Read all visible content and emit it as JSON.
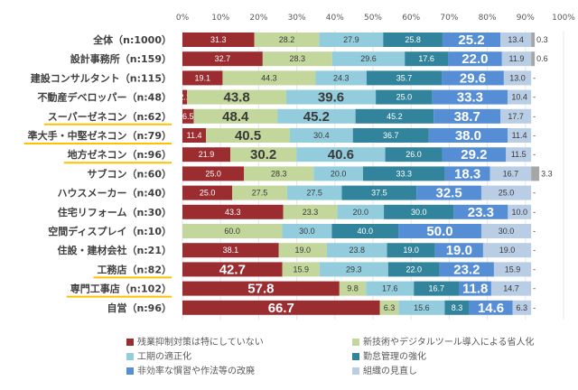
{
  "chart_data": {
    "type": "bar",
    "orientation": "horizontal",
    "stacked": true,
    "normalized_per_row": true,
    "title": "",
    "xlabel": "",
    "ylabel": "",
    "xlim": [
      0,
      100
    ],
    "x_ticks": [
      "0%",
      "10%",
      "20%",
      "30%",
      "40%",
      "50%",
      "60%",
      "70%",
      "80%",
      "90%",
      "100%"
    ],
    "grid": true,
    "legend_position": "bottom",
    "categories": [
      "全体（n:1000）",
      "設計事務所（n:159）",
      "建設コンサルタント（n:115）",
      "不動産デベロッパー（n:48）",
      "スーパーゼネコン（n:62）",
      "準大手・中堅ゼネコン（n:79）",
      "地方ゼネコン（n:96）",
      "サブコン（n:60）",
      "ハウスメーカー（n:40）",
      "住宅リフォーム（n:30）",
      "空間ディスプレイ（n:10）",
      "住設・建材会社（n:21）",
      "工務店（n:82）",
      "専門工事店（n:102）",
      "自営（n:96）"
    ],
    "underlined_categories": [
      4,
      5,
      6,
      12,
      13
    ],
    "series": [
      {
        "name": "残業抑制対策は特にしていない",
        "color": "#9b2d30",
        "values": [
          31.3,
          32.7,
          19.1,
          2.1,
          6.5,
          11.4,
          21.9,
          25.0,
          25.0,
          43.3,
          0,
          38.1,
          42.7,
          57.8,
          66.7
        ]
      },
      {
        "name": "新技術やデジタルツール導入による省人化",
        "color": "#c3d69b",
        "values": [
          28.2,
          28.3,
          44.3,
          43.8,
          48.4,
          40.5,
          30.2,
          28.3,
          27.5,
          23.3,
          60.0,
          19.0,
          15.9,
          9.8,
          6.3
        ]
      },
      {
        "name": "工期の適正化",
        "color": "#93cddd",
        "values": [
          27.9,
          29.6,
          24.3,
          39.6,
          45.2,
          30.4,
          40.6,
          20.0,
          27.5,
          20.0,
          30.0,
          23.8,
          29.3,
          17.6,
          15.6
        ]
      },
      {
        "name": "勤怠管理の強化",
        "color": "#31849b",
        "values": [
          25.8,
          17.6,
          35.7,
          25.0,
          45.2,
          36.7,
          26.0,
          33.3,
          37.5,
          30.0,
          40.0,
          19.0,
          22.0,
          16.7,
          8.3
        ]
      },
      {
        "name": "非効率な慣習や作法等の改廃",
        "color": "#558ed5",
        "values": [
          25.2,
          22.0,
          29.6,
          33.3,
          38.7,
          38.0,
          29.2,
          18.3,
          32.5,
          23.3,
          50.0,
          19.0,
          23.2,
          11.8,
          14.6
        ]
      },
      {
        "name": "組織の見直し",
        "color": "#b9cde5",
        "values": [
          13.4,
          11.9,
          13.0,
          10.4,
          17.7,
          11.4,
          11.5,
          16.7,
          25.0,
          10.0,
          30.0,
          19.0,
          15.9,
          14.7,
          6.3
        ]
      },
      {
        "name": "その他",
        "color": "#a6a6a6",
        "values": [
          0.3,
          0.6,
          0,
          0,
          0,
          0,
          0,
          3.3,
          0,
          0,
          0,
          0,
          0,
          0,
          0
        ],
        "labels": [
          "0.3",
          "0.6",
          "-",
          "-",
          "-",
          "-",
          "-",
          "3.3",
          "-",
          "-",
          "-",
          "-",
          "-",
          "-",
          "-"
        ]
      }
    ],
    "large_label_series_by_row": {
      "3": [
        1,
        2,
        4
      ],
      "4": [
        1,
        2,
        4
      ],
      "5": [
        1,
        4
      ],
      "6": [
        1,
        2,
        4
      ],
      "7": [
        4
      ],
      "8": [
        4
      ],
      "9": [
        4
      ],
      "10": [
        4
      ],
      "11": [
        4
      ],
      "12": [
        0,
        4
      ],
      "13": [
        0,
        4
      ],
      "14": [
        0,
        4
      ],
      "0": [
        4
      ],
      "1": [
        4
      ],
      "2": [
        4
      ]
    }
  },
  "legend": {
    "items": [
      {
        "label": "残業抑制対策は特にしていない",
        "color": "#9b2d30"
      },
      {
        "label": "新技術やデジタルツール導入による省人化",
        "color": "#c3d69b"
      },
      {
        "label": "工期の適正化",
        "color": "#93cddd"
      },
      {
        "label": "勤怠管理の強化",
        "color": "#31849b"
      },
      {
        "label": "非効率な慣習や作法等の改廃",
        "color": "#558ed5"
      },
      {
        "label": "組織の見直し",
        "color": "#b9cde5"
      }
    ]
  },
  "highlight_color": "#ffc000"
}
